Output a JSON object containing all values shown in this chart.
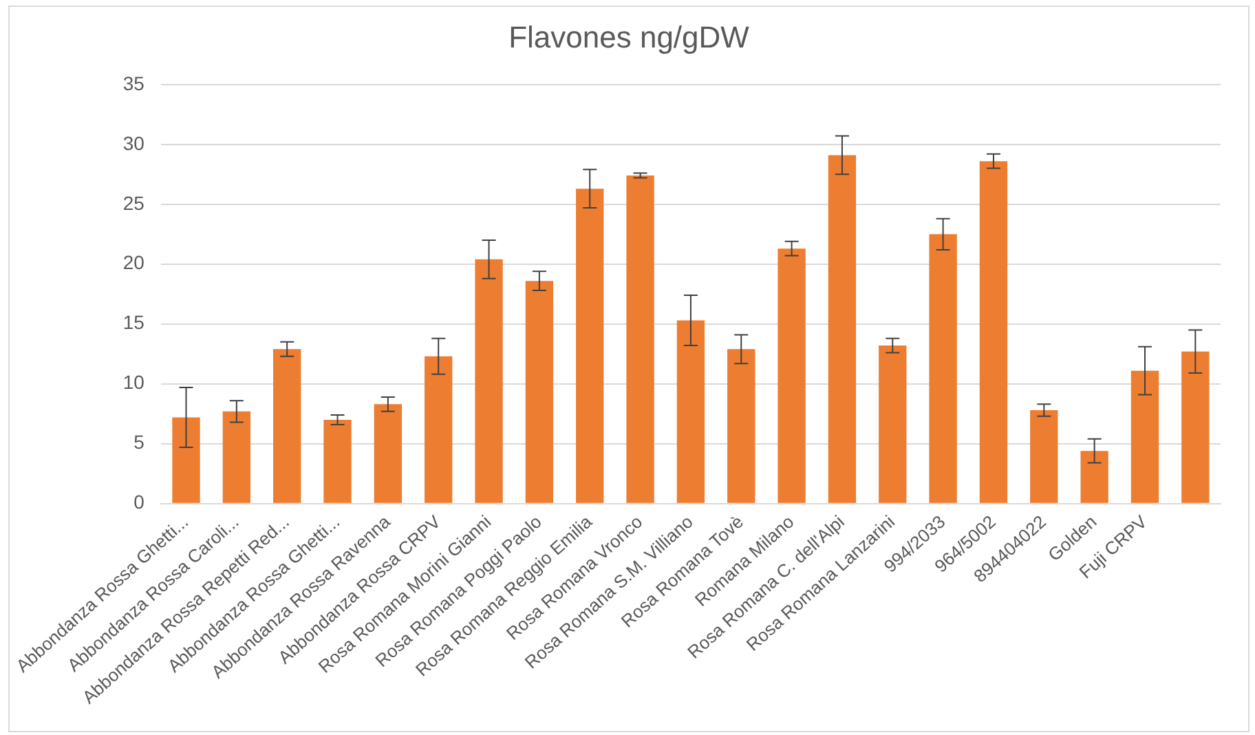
{
  "chart_data": {
    "type": "bar",
    "title": "Flavones ng/gDW",
    "categories": [
      "Abbondanza Rossa Ghetti...",
      "Abbondanza Rossa Caroli...",
      "Abbondanza Rossa Repetti Red...",
      "Abbondanza Rossa Ghetti...",
      "Abbondanza Rossa Ravenna",
      "Abbondanza Rossa CRPV",
      "Rosa Romana Morini Gianni",
      "Rosa Romana Poggi Paolo",
      "Rosa Romana Reggio Emilia",
      "Rosa Romana Vronco",
      "Rosa Romana S.M. Villiano",
      "Rosa Romana Tovè",
      "Romana Milano",
      "Rosa Romana C. dell'Alpi",
      "Rosa Romana Lanzarini",
      "994/2033",
      "964/5002",
      "894404022",
      "Golden",
      "Fuji CRPV",
      null
    ],
    "values": [
      7.2,
      7.7,
      12.9,
      7.0,
      8.3,
      12.3,
      20.4,
      18.6,
      26.3,
      27.4,
      15.3,
      12.9,
      21.3,
      29.1,
      13.2,
      22.5,
      28.6,
      7.8,
      4.4,
      11.1,
      12.7
    ],
    "errors": [
      2.5,
      0.9,
      0.6,
      0.4,
      0.6,
      1.5,
      1.6,
      0.8,
      1.6,
      0.2,
      2.1,
      1.2,
      0.6,
      1.6,
      0.6,
      1.3,
      0.6,
      0.5,
      1.0,
      2.0,
      1.8
    ],
    "color": "#ed7d31",
    "ylim": [
      0,
      35
    ],
    "yticks": [
      0,
      5,
      10,
      15,
      20,
      25,
      30,
      35
    ],
    "grid": "y",
    "legend": false
  }
}
